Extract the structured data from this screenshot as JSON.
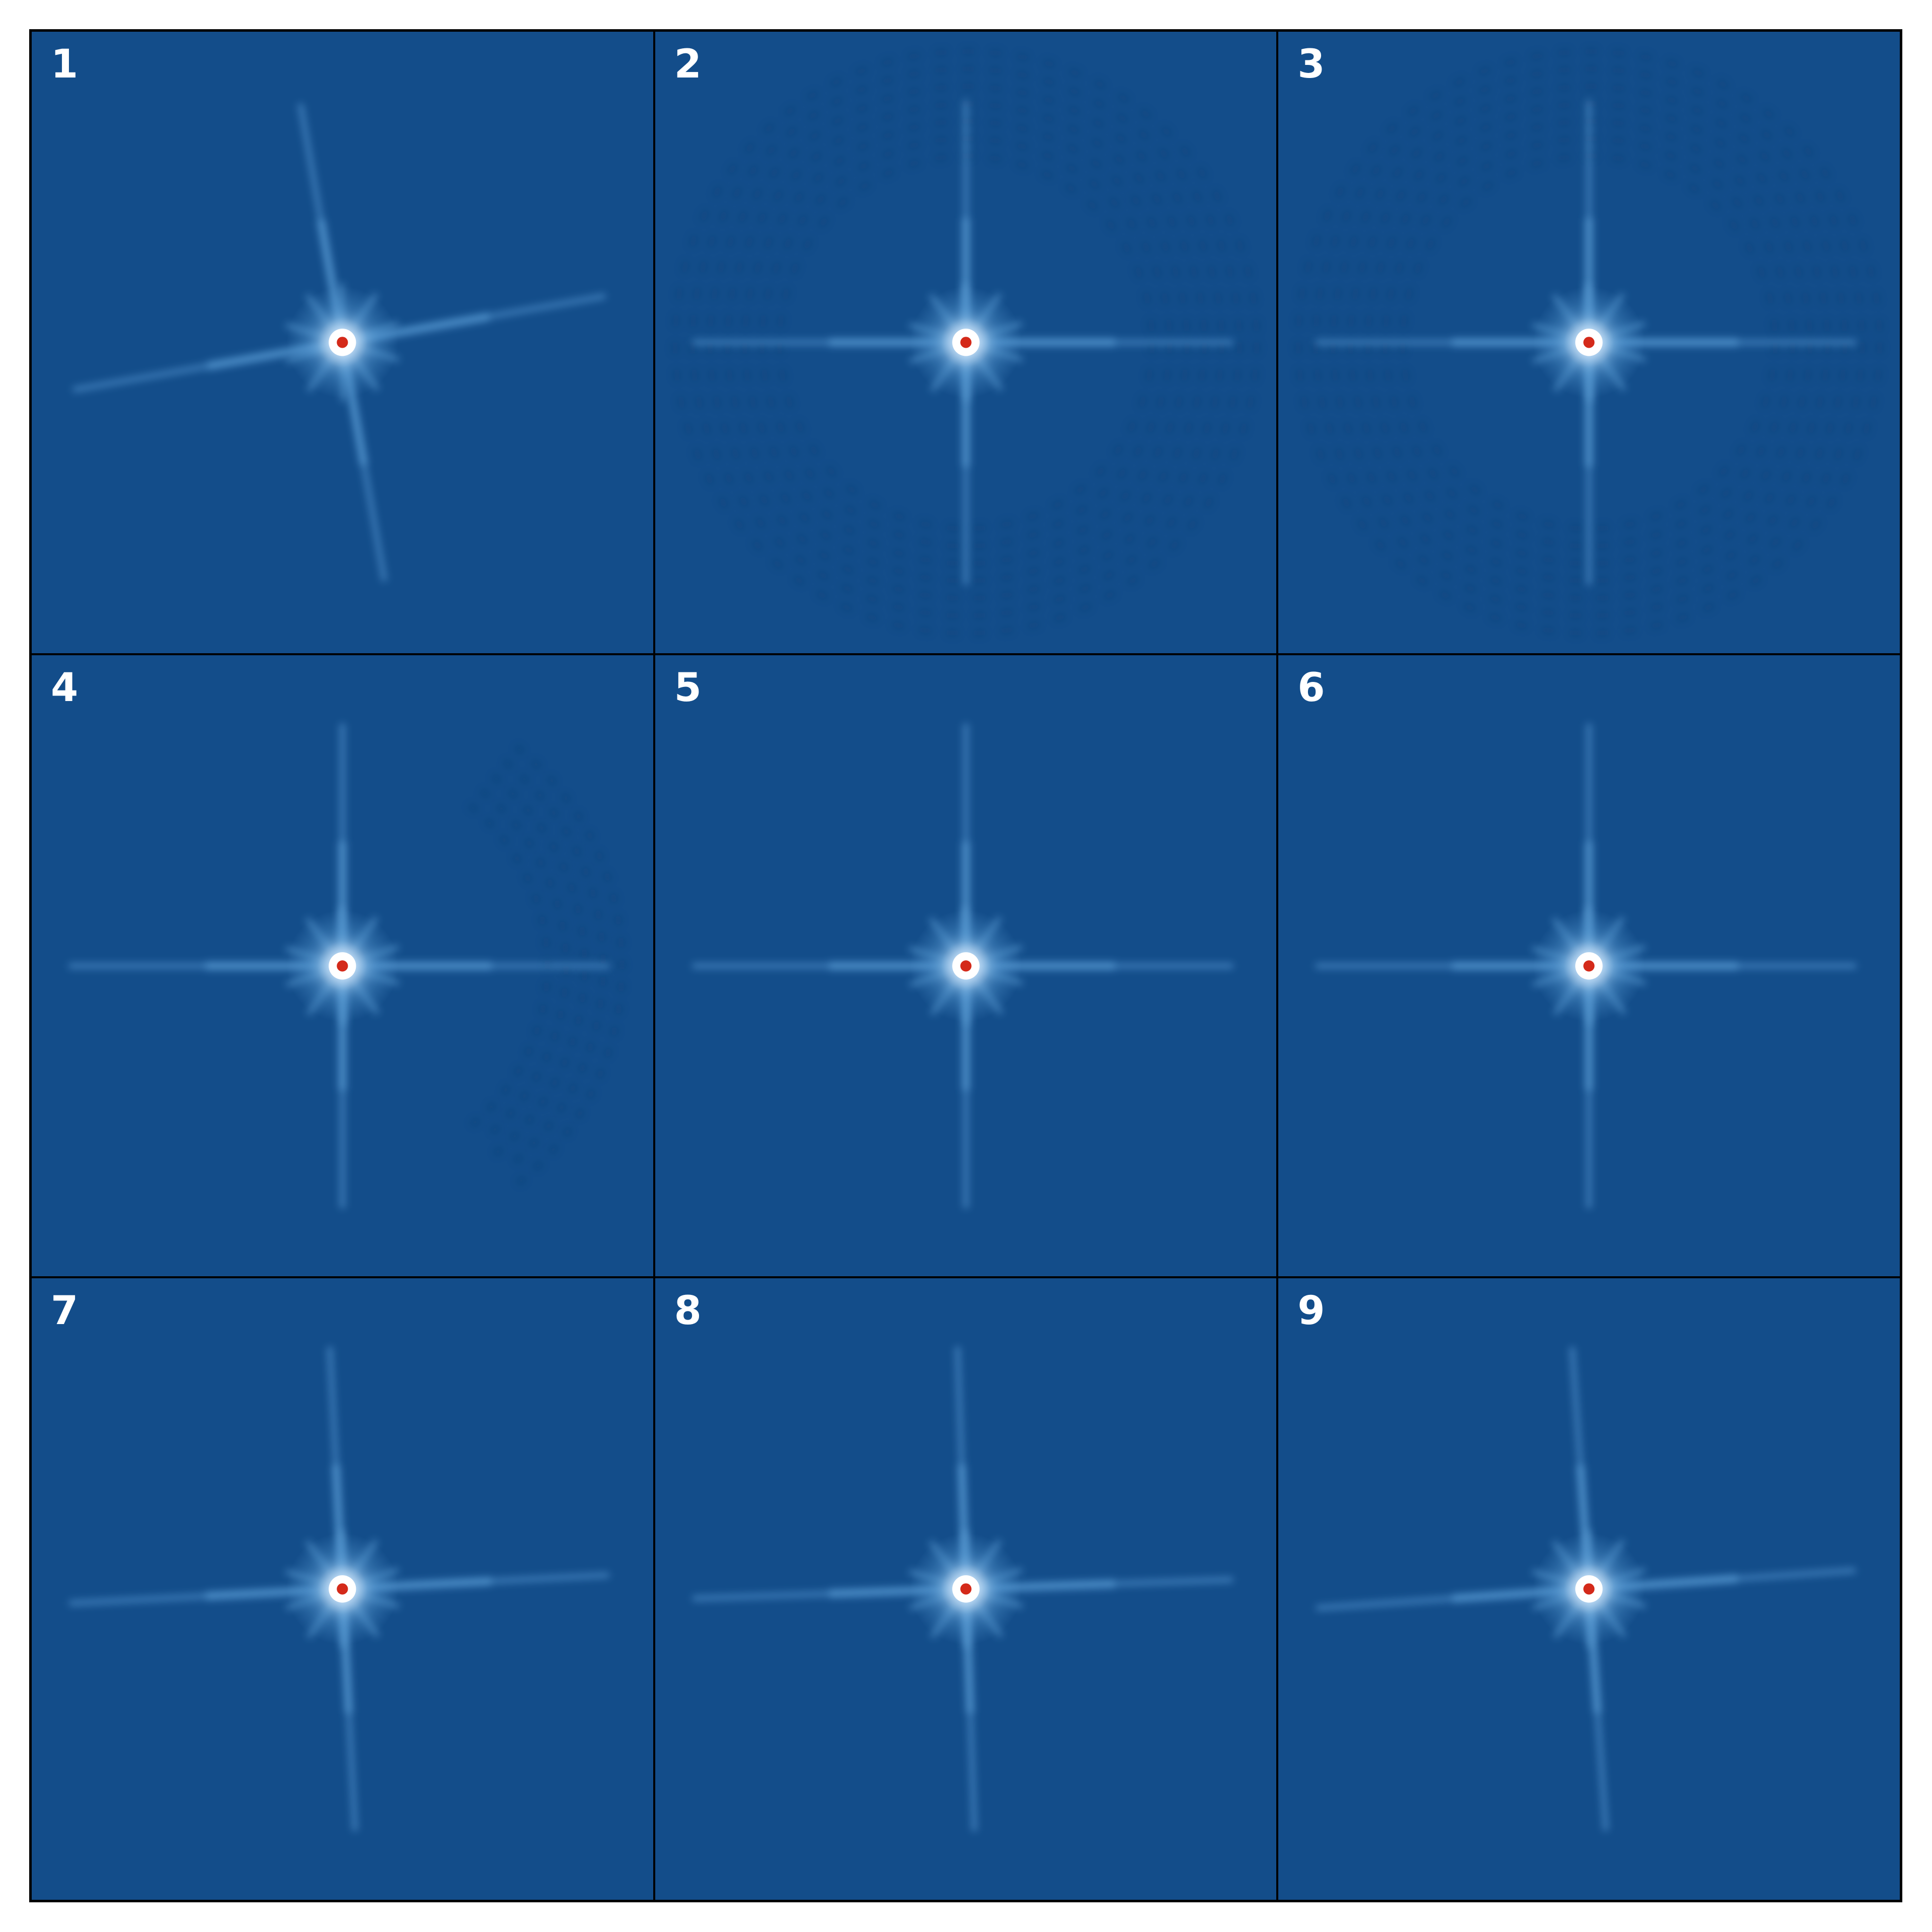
{
  "colors": {
    "background": "#134d8a",
    "spike": "#5b9fd8",
    "halo": "#cfe6fb",
    "core": "#ffffff",
    "peak": "#d42a1a",
    "label": "#ffffff",
    "frame": "#000000"
  },
  "panels": [
    {
      "label": "1",
      "spike_rotation_deg": -10,
      "ring_noise": false,
      "edge_noise": false
    },
    {
      "label": "2",
      "spike_rotation_deg": 0,
      "ring_noise": true,
      "edge_noise": false
    },
    {
      "label": "3",
      "spike_rotation_deg": 0,
      "ring_noise": true,
      "edge_noise": false
    },
    {
      "label": "4",
      "spike_rotation_deg": 0,
      "ring_noise": false,
      "edge_noise": true
    },
    {
      "label": "5",
      "spike_rotation_deg": 0,
      "ring_noise": false,
      "edge_noise": false
    },
    {
      "label": "6",
      "spike_rotation_deg": 0,
      "ring_noise": false,
      "edge_noise": false
    },
    {
      "label": "7",
      "spike_rotation_deg": -3,
      "ring_noise": false,
      "edge_noise": false
    },
    {
      "label": "8",
      "spike_rotation_deg": -2,
      "ring_noise": false,
      "edge_noise": false
    },
    {
      "label": "9",
      "spike_rotation_deg": -4,
      "ring_noise": false,
      "edge_noise": false
    }
  ]
}
